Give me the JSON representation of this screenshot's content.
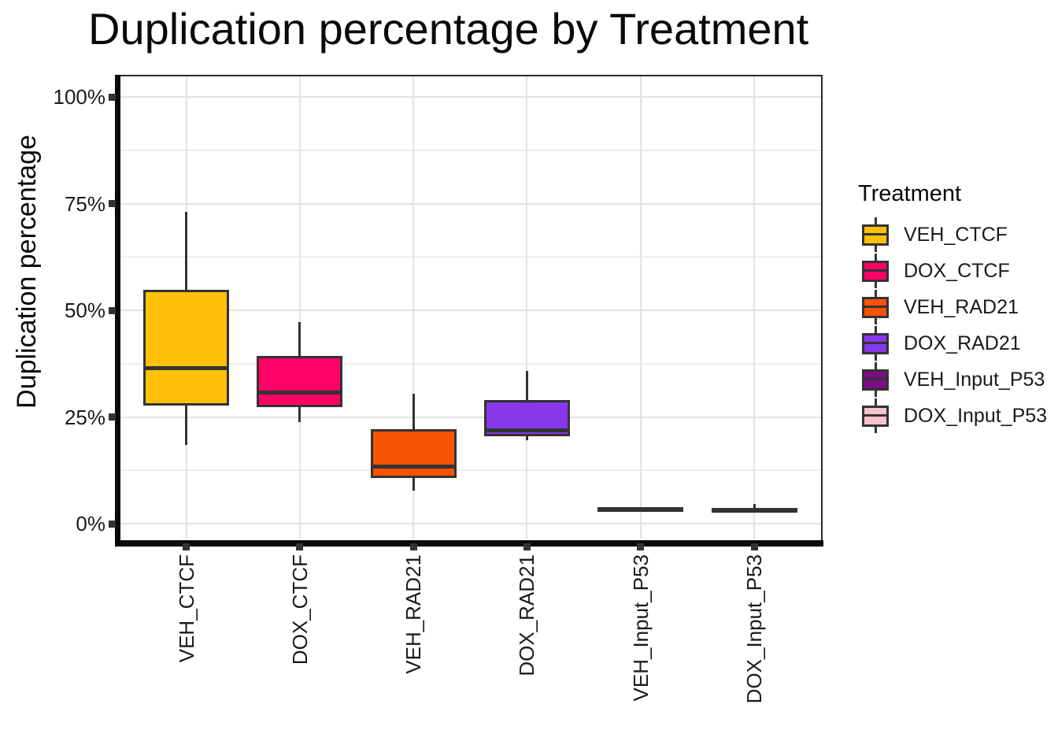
{
  "title": "Duplication percentage by Treatment",
  "y_axis": {
    "label": "Duplication percentage",
    "ticks": [
      {
        "label": "0%",
        "value": 0
      },
      {
        "label": "25%",
        "value": 25
      },
      {
        "label": "50%",
        "value": 50
      },
      {
        "label": "75%",
        "value": 75
      },
      {
        "label": "100%",
        "value": 100
      }
    ],
    "minor_tick_values": [
      12.5,
      37.5,
      62.5,
      87.5
    ]
  },
  "x_axis": {
    "categories": [
      "VEH_CTCF",
      "DOX_CTCF",
      "VEH_RAD21",
      "DOX_RAD21",
      "VEH_Input_P53",
      "DOX_Input_P53"
    ]
  },
  "legend": {
    "title": "Treatment",
    "position": "right",
    "items": [
      {
        "label": "VEH_CTCF",
        "color": "#FFC107"
      },
      {
        "label": "DOX_CTCF",
        "color": "#FF0266"
      },
      {
        "label": "VEH_RAD21",
        "color": "#FA5302"
      },
      {
        "label": "DOX_RAD21",
        "color": "#8838EA"
      },
      {
        "label": "VEH_Input_P53",
        "color": "#7D0E87"
      },
      {
        "label": "DOX_Input_P53",
        "color": "#F9C3CE"
      }
    ]
  },
  "chart_data": {
    "type": "boxplot",
    "title": "Duplication percentage by Treatment",
    "xlabel": "",
    "ylabel": "Duplication percentage",
    "ylim": [
      0,
      100
    ],
    "y_tick_format": "percent",
    "grid": "horizontal major+minor light gray; vertical light gray line at each category",
    "legend_position": "right",
    "categories": [
      "VEH_CTCF",
      "DOX_CTCF",
      "VEH_RAD21",
      "DOX_RAD21",
      "VEH_Input_P53",
      "DOX_Input_P53"
    ],
    "series": [
      {
        "name": "VEH_CTCF",
        "color": "#FFC107",
        "min": 18.5,
        "q1": 27.7,
        "median": 36.5,
        "q3": 54.8,
        "max": 73.1
      },
      {
        "name": "DOX_CTCF",
        "color": "#FF0266",
        "min": 23.8,
        "q1": 27.3,
        "median": 30.8,
        "q3": 39.3,
        "max": 47.2
      },
      {
        "name": "VEH_RAD21",
        "color": "#FA5302",
        "min": 7.7,
        "q1": 10.7,
        "median": 13.3,
        "q3": 22.1,
        "max": 30.4
      },
      {
        "name": "DOX_RAD21",
        "color": "#8838EA",
        "min": 19.6,
        "q1": 20.5,
        "median": 21.8,
        "q3": 29.0,
        "max": 35.8
      },
      {
        "name": "VEH_Input_P53",
        "color": "#7D0E87",
        "min": 3.1,
        "q1": 3.2,
        "median": 3.5,
        "q3": 3.8,
        "max": 3.9
      },
      {
        "name": "DOX_Input_P53",
        "color": "#F9C3CE",
        "min": 2.8,
        "q1": 3.0,
        "median": 3.3,
        "q3": 3.6,
        "max": 4.6
      }
    ],
    "colors": {
      "box_outline": "#333333",
      "grid_major": "#E3E3E3",
      "grid_minor": "#EDEDED",
      "axis": "#0A0A0A",
      "background": "#FFFFFF"
    }
  }
}
